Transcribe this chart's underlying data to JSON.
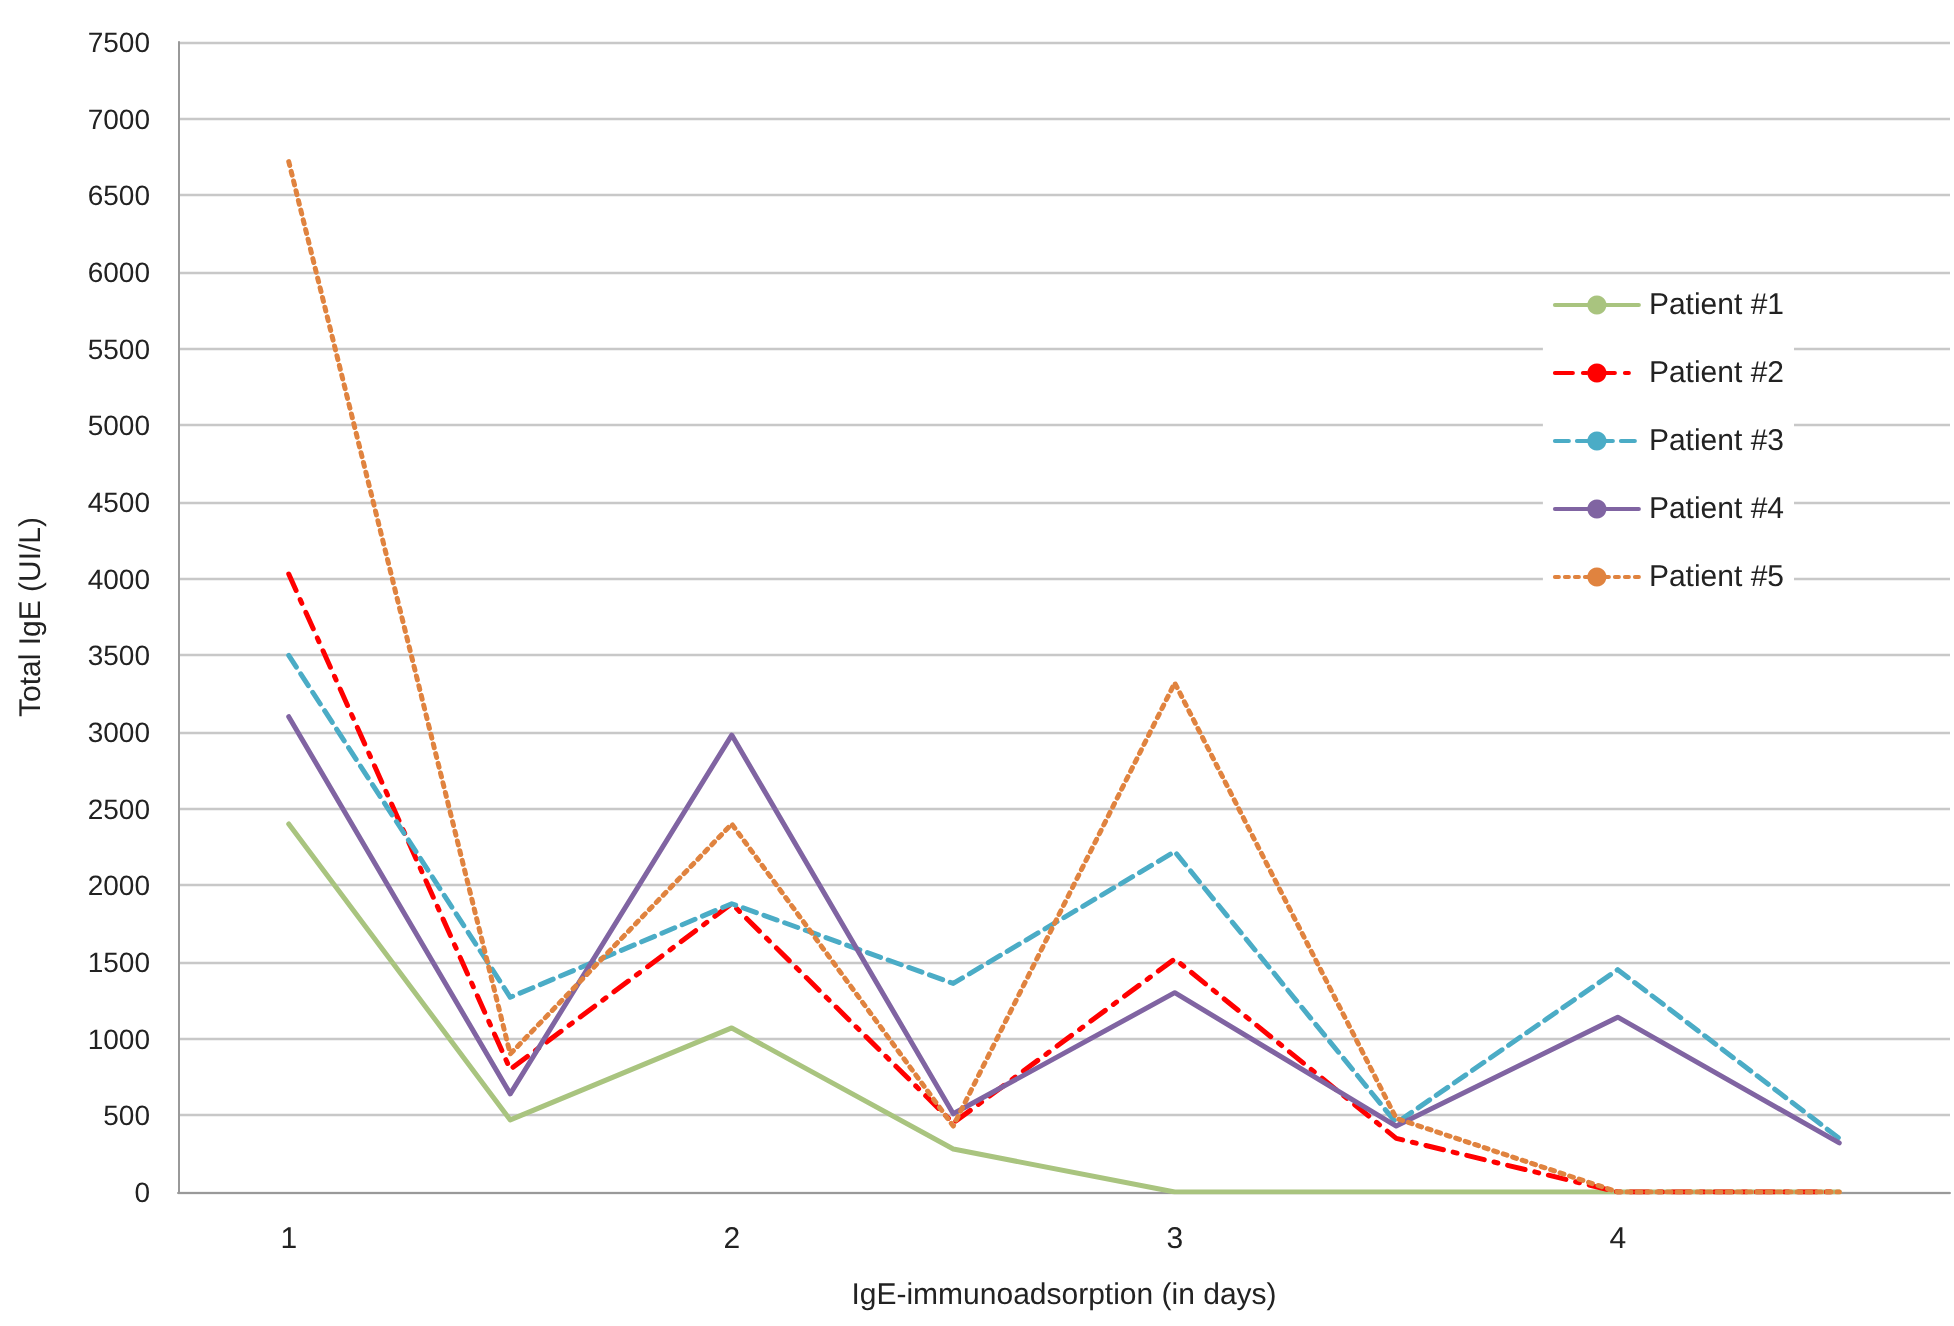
{
  "chart_data": {
    "type": "line",
    "xlabel": "IgE-immunoadsorption (in days)",
    "ylabel": "Total IgE (UI/L)",
    "categories": [
      "1",
      null,
      "2",
      null,
      "3",
      null,
      "4",
      null
    ],
    "series": [
      {
        "name": "Patient #1",
        "color": "#a9c47f",
        "line_style": "solid",
        "values": [
          2400,
          470,
          1070,
          280,
          0,
          0,
          0,
          0
        ]
      },
      {
        "name": "Patient #2",
        "color": "#ff0000",
        "line_style": "dashdot",
        "values": [
          4030,
          800,
          1880,
          450,
          1520,
          350,
          0,
          0
        ]
      },
      {
        "name": "Patient #3",
        "color": "#4bacc6",
        "line_style": "dashed",
        "values": [
          3500,
          1270,
          1880,
          1360,
          2220,
          450,
          1450,
          350
        ]
      },
      {
        "name": "Patient #4",
        "color": "#8064a2",
        "line_style": "solid",
        "values": [
          3100,
          640,
          2980,
          510,
          1300,
          430,
          1140,
          320
        ]
      },
      {
        "name": "Patient #5",
        "color": "#e0833f",
        "line_style": "dotted",
        "values": [
          6720,
          900,
          2400,
          430,
          3320,
          480,
          0,
          0
        ]
      }
    ],
    "ylim": [
      0,
      7500
    ],
    "yticks": [
      0,
      500,
      1000,
      1500,
      2000,
      2500,
      3000,
      3500,
      4000,
      4500,
      5000,
      5500,
      6000,
      6500,
      7000,
      7500
    ],
    "grid": "y",
    "legend": "top right",
    "marker": "none"
  }
}
